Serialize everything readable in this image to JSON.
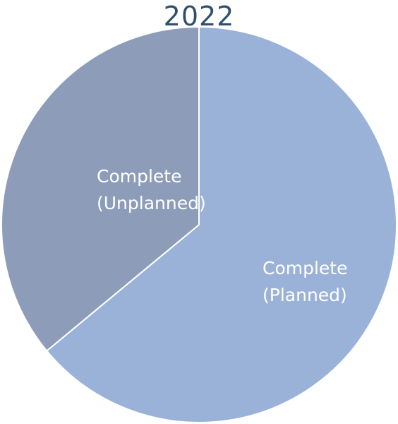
{
  "chart_data": {
    "type": "pie",
    "title": "2022",
    "series": [
      {
        "label_lines": [
          "Complete",
          "(Planned)"
        ],
        "value": 64,
        "color": "#9bb2d8"
      },
      {
        "label_lines": [
          "Complete",
          "(Unplanned)"
        ],
        "value": 36,
        "color": "#8d9db9"
      }
    ],
    "start_angle_deg": -90,
    "direction": "clockwise",
    "slice_border_color": "#ffffff",
    "title_color": "#2f4f6b",
    "label_color": "#ffffff"
  }
}
